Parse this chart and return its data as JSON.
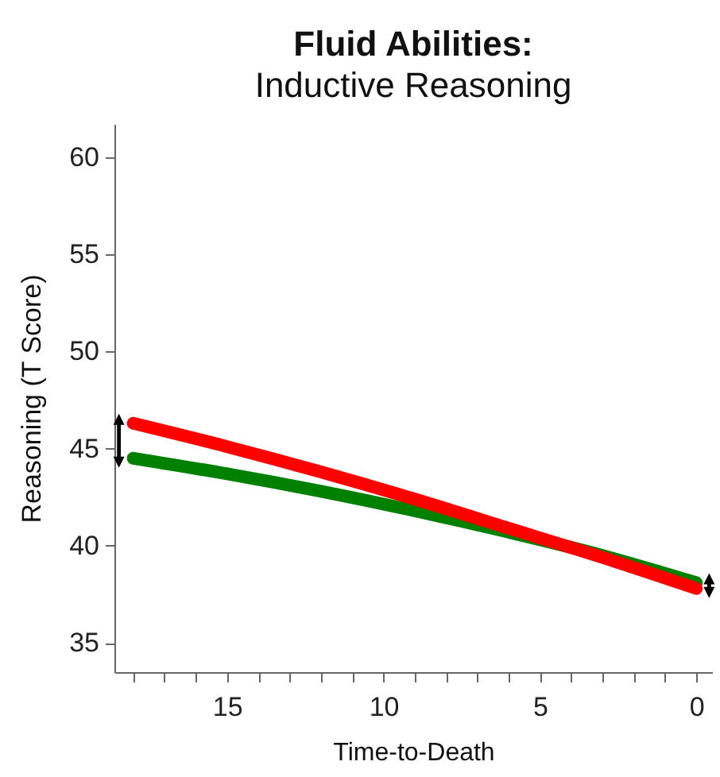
{
  "chart_data": {
    "type": "line",
    "title": "Fluid Abilities:",
    "subtitle": "Inductive Reasoning",
    "xlabel": "Time-to-Death",
    "ylabel": "Reasoning (T Score)",
    "x": [
      18,
      15,
      12,
      9,
      6,
      3,
      0
    ],
    "series": [
      {
        "color": "#008000",
        "values": [
          44.5,
          43.7,
          42.8,
          41.8,
          40.7,
          39.5,
          38.1
        ]
      },
      {
        "color": "#ff0000",
        "values": [
          46.3,
          45.1,
          43.8,
          42.4,
          40.9,
          39.4,
          37.8
        ]
      }
    ],
    "xlim": [
      18.6,
      -0.5
    ],
    "ylim": [
      33.5,
      61.7
    ],
    "xticks": [
      {
        "value": 18,
        "label": null
      },
      {
        "value": 17,
        "label": null
      },
      {
        "value": 16,
        "label": null
      },
      15,
      {
        "value": 14,
        "label": null
      },
      {
        "value": 13,
        "label": null
      },
      {
        "value": 12,
        "label": null
      },
      {
        "value": 11,
        "label": null
      },
      10,
      {
        "value": 9,
        "label": null
      },
      {
        "value": 8,
        "label": null
      },
      {
        "value": 7,
        "label": null
      },
      {
        "value": 6,
        "label": null
      },
      5,
      {
        "value": 4,
        "label": null
      },
      {
        "value": 3,
        "label": null
      },
      {
        "value": 2,
        "label": null
      },
      {
        "value": 1,
        "label": null
      },
      0
    ],
    "yticks": [
      35,
      40,
      45,
      50,
      55,
      60
    ],
    "grid": false,
    "marker": "none",
    "line_style": "solid"
  }
}
